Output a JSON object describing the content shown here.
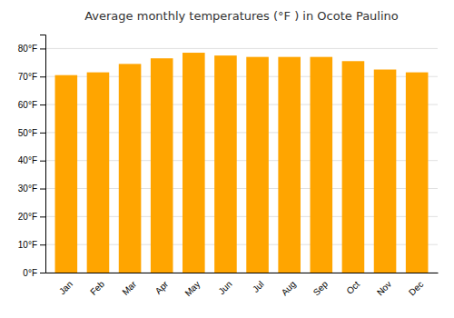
{
  "chart_data": {
    "type": "bar",
    "title": "Average monthly temperatures (°F ) in Ocote Paulino",
    "categories": [
      "Jan",
      "Feb",
      "Mar",
      "Apr",
      "May",
      "Jun",
      "Jul",
      "Aug",
      "Sep",
      "Oct",
      "Nov",
      "Dec"
    ],
    "values": [
      70.5,
      71.5,
      74.5,
      76.5,
      78.5,
      77.5,
      77.0,
      77.0,
      77.0,
      75.5,
      72.5,
      71.5
    ],
    "color": "#FFA500",
    "ylim": [
      0,
      85
    ],
    "yticks": [
      {
        "value": 0,
        "label": "0°F"
      },
      {
        "value": 10,
        "label": "10°F"
      },
      {
        "value": 20,
        "label": "20°F"
      },
      {
        "value": 30,
        "label": "30°F"
      },
      {
        "value": 40,
        "label": "40°F"
      },
      {
        "value": 50,
        "label": "50°F"
      },
      {
        "value": 60,
        "label": "60°F"
      },
      {
        "value": 70,
        "label": "70°F"
      },
      {
        "value": 80,
        "label": "80°F"
      }
    ],
    "grid": true
  }
}
